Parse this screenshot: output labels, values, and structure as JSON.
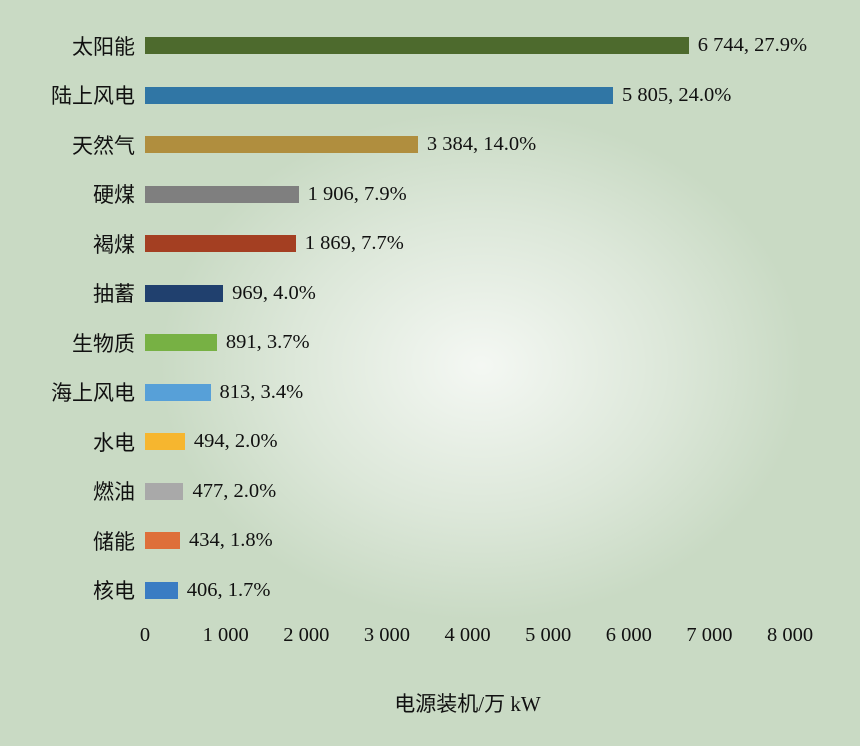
{
  "page": {
    "background_color": "#c9dac4"
  },
  "chart_data": {
    "type": "bar",
    "orientation": "horizontal",
    "title": "",
    "xlabel": "电源装机/万 kW",
    "ylabel": "",
    "xlim": [
      0,
      8000
    ],
    "grid": false,
    "legend": false,
    "categories": [
      "太阳能",
      "陆上风电",
      "天然气",
      "硬煤",
      "褐煤",
      "抽蓄",
      "生物质",
      "海上风电",
      "水电",
      "燃油",
      "储能",
      "核电"
    ],
    "values": [
      6744,
      5805,
      3384,
      1906,
      1869,
      969,
      891,
      813,
      494,
      477,
      434,
      406
    ],
    "percentages": [
      27.9,
      24.0,
      14.0,
      7.9,
      7.7,
      4.0,
      3.7,
      3.4,
      2.0,
      2.0,
      1.8,
      1.7
    ],
    "value_labels": [
      "6 744, 27.9%",
      "5 805, 24.0%",
      "3 384, 14.0%",
      "1 906, 7.9%",
      "1 869, 7.7%",
      "969, 4.0%",
      "891, 3.7%",
      "813, 3.4%",
      "494, 2.0%",
      "477, 2.0%",
      "434, 1.8%",
      "406, 1.7%"
    ],
    "bar_colors": [
      "#4d6a2d",
      "#3076a5",
      "#b08e3e",
      "#7f7f7f",
      "#a43f22",
      "#20406e",
      "#77b144",
      "#57a0d8",
      "#f6b62f",
      "#a9a9a9",
      "#de6f3a",
      "#3a7cc3"
    ],
    "x_ticks": [
      {
        "value": 0,
        "label": "0"
      },
      {
        "value": 1000,
        "label": "1 000"
      },
      {
        "value": 2000,
        "label": "2 000"
      },
      {
        "value": 3000,
        "label": "3 000"
      },
      {
        "value": 4000,
        "label": "4 000"
      },
      {
        "value": 5000,
        "label": "5 000"
      },
      {
        "value": 6000,
        "label": "6 000"
      },
      {
        "value": 7000,
        "label": "7 000"
      },
      {
        "value": 8000,
        "label": "8 000"
      }
    ]
  }
}
